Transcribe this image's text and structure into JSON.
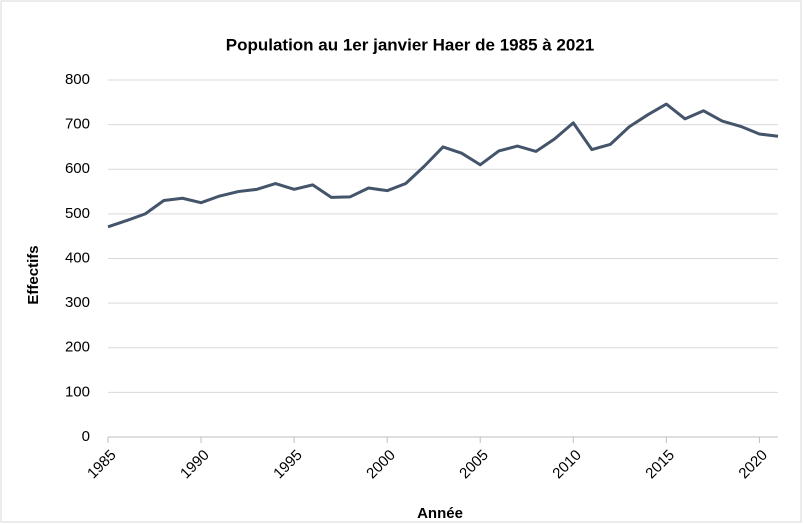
{
  "chart_data": {
    "type": "line",
    "title": "Population au 1er janvier Haer de 1985 à 2021",
    "x_label": "Année",
    "y_label": "Effectifs",
    "x": [
      1985,
      1986,
      1987,
      1988,
      1989,
      1990,
      1991,
      1992,
      1993,
      1994,
      1995,
      1996,
      1997,
      1998,
      1999,
      2000,
      2001,
      2002,
      2003,
      2004,
      2005,
      2006,
      2007,
      2008,
      2009,
      2010,
      2011,
      2012,
      2013,
      2014,
      2015,
      2016,
      2017,
      2018,
      2019,
      2020,
      2021
    ],
    "series": [
      {
        "name": "Effectifs",
        "color": "#44546a",
        "values": [
          471,
          485,
          500,
          530,
          535,
          525,
          540,
          550,
          555,
          568,
          555,
          565,
          537,
          538,
          558,
          552,
          568,
          607,
          650,
          636,
          610,
          641,
          652,
          640,
          668,
          704,
          644,
          656,
          695,
          722,
          746,
          713,
          731,
          708,
          696,
          679,
          674
        ]
      }
    ],
    "xlim": [
      1985,
      2021
    ],
    "xticks": [
      1985,
      1990,
      1995,
      2000,
      2005,
      2010,
      2015,
      2020
    ],
    "ylim": [
      0,
      800
    ],
    "yticks": [
      0,
      100,
      200,
      300,
      400,
      500,
      600,
      700,
      800
    ],
    "grid": true
  }
}
